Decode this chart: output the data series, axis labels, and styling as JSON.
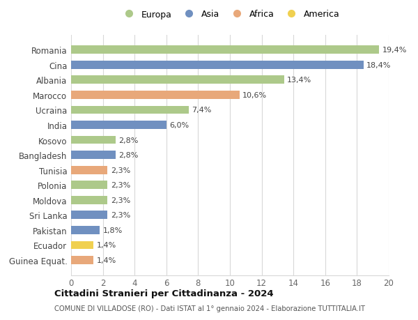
{
  "countries": [
    "Romania",
    "Cina",
    "Albania",
    "Marocco",
    "Ucraina",
    "India",
    "Kosovo",
    "Bangladesh",
    "Tunisia",
    "Polonia",
    "Moldova",
    "Sri Lanka",
    "Pakistan",
    "Ecuador",
    "Guinea Equat."
  ],
  "values": [
    19.4,
    18.4,
    13.4,
    10.6,
    7.4,
    6.0,
    2.8,
    2.8,
    2.3,
    2.3,
    2.3,
    2.3,
    1.8,
    1.4,
    1.4
  ],
  "labels": [
    "19,4%",
    "18,4%",
    "13,4%",
    "10,6%",
    "7,4%",
    "6,0%",
    "2,8%",
    "2,8%",
    "2,3%",
    "2,3%",
    "2,3%",
    "2,3%",
    "1,8%",
    "1,4%",
    "1,4%"
  ],
  "continents": [
    "Europa",
    "Asia",
    "Europa",
    "Africa",
    "Europa",
    "Asia",
    "Europa",
    "Asia",
    "Africa",
    "Europa",
    "Europa",
    "Asia",
    "Asia",
    "America",
    "Africa"
  ],
  "colors": {
    "Europa": "#adc98a",
    "Asia": "#7090c0",
    "Africa": "#e8a87a",
    "America": "#f0d050"
  },
  "title": "Cittadini Stranieri per Cittadinanza - 2024",
  "subtitle": "COMUNE DI VILLADOSE (RO) - Dati ISTAT al 1° gennaio 2024 - Elaborazione TUTTITALIA.IT",
  "xlim": [
    0,
    20
  ],
  "xticks": [
    0,
    2,
    4,
    6,
    8,
    10,
    12,
    14,
    16,
    18,
    20
  ],
  "background_color": "#ffffff",
  "grid_color": "#d8d8d8",
  "bar_height": 0.55,
  "label_fontsize": 8,
  "ytick_fontsize": 8.5,
  "xtick_fontsize": 8.5
}
